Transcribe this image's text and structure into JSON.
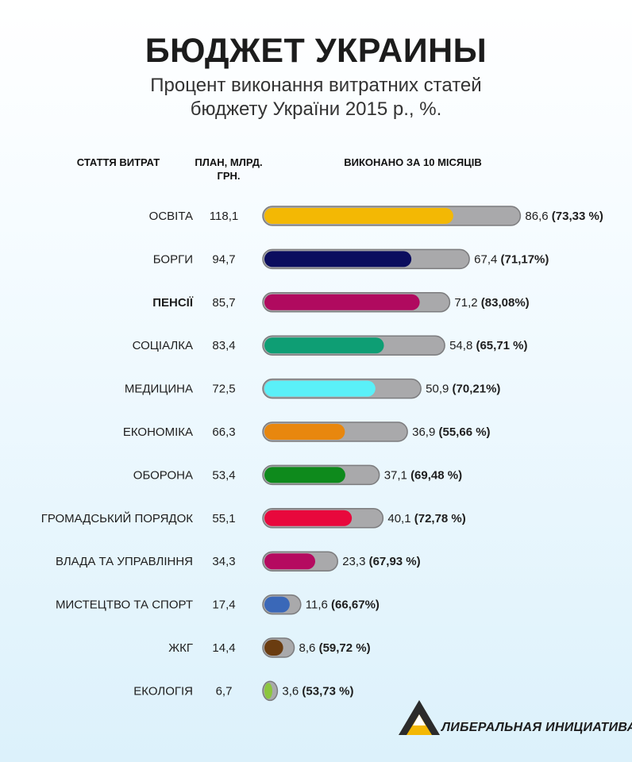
{
  "title": "БЮДЖЕТ УКРАИНЫ",
  "subtitle_line1": "Процент виконання витратних статей",
  "subtitle_line2": "бюджету України 2015 р., %.",
  "headers": {
    "category": "СТАТТЯ ВИТРАТ",
    "plan_line1": "ПЛАН, МЛРД.",
    "plan_line2": "ГРН.",
    "done": "ВИКОНАНО ЗА 10 МІСЯЦІВ"
  },
  "logo_text": "ЛИБЕРАЛЬНАЯ ИНИЦИАТИВА",
  "chart_data": {
    "type": "bar",
    "orientation": "horizontal",
    "grid": false,
    "series": [
      {
        "name": "",
        "role": "plan"
      },
      {
        "name": "",
        "role": "executed"
      }
    ],
    "rows": [
      {
        "category": "ОСВІТА",
        "plan": 118.1,
        "plan_label": "118,1",
        "done": 86.6,
        "done_label": "86,6",
        "pct_label": "(73,33 %)",
        "color": "#f3b804",
        "bold": false
      },
      {
        "category": "БОРГИ",
        "plan": 94.7,
        "plan_label": "94,7",
        "done": 67.4,
        "done_label": "67,4",
        "pct_label": "(71,17%)",
        "color": "#0b0d5e",
        "bold": false
      },
      {
        "category": "ПЕНСІЇ",
        "plan": 85.7,
        "plan_label": "85,7",
        "done": 71.2,
        "done_label": "71,2",
        "pct_label": "(83,08%)",
        "color": "#b00a5f",
        "bold": true
      },
      {
        "category": "СОЦІАЛКА",
        "plan": 83.4,
        "plan_label": "83,4",
        "done": 54.8,
        "done_label": "54,8",
        "pct_label": "(65,71 %)",
        "color": "#0e9e74",
        "bold": false
      },
      {
        "category": "МЕДИЦИНА",
        "plan": 72.5,
        "plan_label": "72,5",
        "done": 50.9,
        "done_label": "50,9",
        "pct_label": "(70,21%)",
        "color": "#5af0f8",
        "bold": false
      },
      {
        "category": "ЕКОНОМІКА",
        "plan": 66.3,
        "plan_label": "66,3",
        "done": 36.9,
        "done_label": "36,9",
        "pct_label": "(55,66 %)",
        "color": "#e8870e",
        "bold": false
      },
      {
        "category": "ОБОРОНА",
        "plan": 53.4,
        "plan_label": "53,4",
        "done": 37.1,
        "done_label": "37,1",
        "pct_label": "(69,48 %)",
        "color": "#0e8a1c",
        "bold": false
      },
      {
        "category": "ГРОМАДСЬКИЙ ПОРЯДОК",
        "plan": 55.1,
        "plan_label": "55,1",
        "done": 40.1,
        "done_label": "40,1",
        "pct_label": "(72,78 %)",
        "color": "#e8083c",
        "bold": false
      },
      {
        "category": "ВЛАДА ТА УПРАВЛІННЯ",
        "plan": 34.3,
        "plan_label": "34,3",
        "done": 23.3,
        "done_label": "23,3",
        "pct_label": "(67,93 %)",
        "color": "#b50a60",
        "bold": false
      },
      {
        "category": "МИСТЕЦТВО ТА СПОРТ",
        "plan": 17.4,
        "plan_label": "17,4",
        "done": 11.6,
        "done_label": "11,6",
        "pct_label": "(66,67%)",
        "color": "#3a68b8",
        "bold": false
      },
      {
        "category": "ЖКГ",
        "plan": 14.4,
        "plan_label": "14,4",
        "done": 8.6,
        "done_label": "8,6",
        "pct_label": "(59,72 %)",
        "color": "#6a3c10",
        "bold": false
      },
      {
        "category": "ЕКОЛОГІЯ",
        "plan": 6.7,
        "plan_label": "6,7",
        "done": 3.6,
        "done_label": "3,6",
        "pct_label": "(53,73 %)",
        "color": "#8cc63e",
        "bold": false
      }
    ],
    "track_color": "#a9a9ab",
    "track_border_color": "#7c7c7e"
  }
}
